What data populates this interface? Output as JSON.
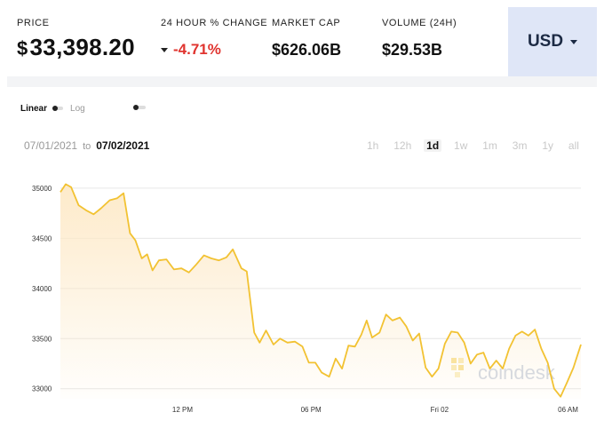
{
  "stats": {
    "price_label": "PRICE",
    "price_symbol": "$",
    "price_value": "33,398.20",
    "change_label": "24 HOUR % CHANGE",
    "change_value": "-4.71%",
    "market_cap_label": "MARKET CAP",
    "market_cap_value": "$626.06B",
    "volume_label": "VOLUME (24H)",
    "volume_value": "$29.53B"
  },
  "currency": {
    "label": "USD"
  },
  "scale": {
    "linear": "Linear",
    "log": "Log",
    "selected": "Linear"
  },
  "range": {
    "from": "07/01/2021",
    "to_word": "to",
    "to": "07/02/2021"
  },
  "periods": [
    "1h",
    "12h",
    "1d",
    "1w",
    "1m",
    "3m",
    "1y",
    "all"
  ],
  "active_period": "1d",
  "watermark": "coindesk",
  "colors": {
    "line": "#f2c232",
    "fill_top": "#fde9c7",
    "negative": "#e0342f",
    "currency_bg": "#dfe6f7"
  },
  "chart_data": {
    "type": "area",
    "x_ticks": [
      {
        "label": "12 PM",
        "hour": 12
      },
      {
        "label": "06 PM",
        "hour": 18
      },
      {
        "label": "Fri 02",
        "hour": 24
      },
      {
        "label": "06 AM",
        "hour": 30
      }
    ],
    "y_ticks": [
      33000,
      33500,
      34000,
      34500,
      35000
    ],
    "ylim": [
      32900,
      35150
    ],
    "xlim": [
      6.3,
      30.6
    ],
    "x": [
      6.3,
      6.55,
      6.8,
      7.15,
      7.5,
      7.85,
      8.2,
      8.6,
      8.95,
      9.25,
      9.55,
      9.8,
      10.1,
      10.35,
      10.6,
      10.9,
      11.25,
      11.6,
      11.95,
      12.3,
      12.65,
      13.0,
      13.35,
      13.7,
      14.05,
      14.35,
      14.75,
      15.0,
      15.35,
      15.6,
      15.9,
      16.25,
      16.55,
      16.9,
      17.25,
      17.6,
      17.9,
      18.2,
      18.5,
      18.85,
      19.15,
      19.45,
      19.75,
      20.05,
      20.35,
      20.6,
      20.85,
      21.2,
      21.5,
      21.8,
      22.15,
      22.45,
      22.75,
      23.05,
      23.35,
      23.65,
      23.95,
      24.25,
      24.55,
      24.85,
      25.15,
      25.45,
      25.75,
      26.05,
      26.35,
      26.65,
      26.95,
      27.25,
      27.55,
      27.85,
      28.15,
      28.45,
      28.75,
      29.05,
      29.35,
      29.65,
      29.95,
      30.25,
      30.6
    ],
    "y": [
      34960,
      35040,
      35010,
      34830,
      34780,
      34740,
      34800,
      34880,
      34900,
      34950,
      34550,
      34480,
      34300,
      34340,
      34180,
      34280,
      34290,
      34190,
      34200,
      34160,
      34240,
      34330,
      34300,
      34280,
      34310,
      34390,
      34200,
      34170,
      33560,
      33460,
      33580,
      33440,
      33500,
      33460,
      33470,
      33420,
      33260,
      33260,
      33160,
      33120,
      33300,
      33200,
      33430,
      33420,
      33540,
      33680,
      33510,
      33560,
      33740,
      33680,
      33710,
      33620,
      33480,
      33550,
      33210,
      33120,
      33200,
      33450,
      33570,
      33560,
      33460,
      33250,
      33340,
      33360,
      33200,
      33280,
      33200,
      33400,
      33530,
      33570,
      33530,
      33590,
      33400,
      33260,
      33000,
      32920,
      33060,
      33210,
      33440
    ]
  }
}
